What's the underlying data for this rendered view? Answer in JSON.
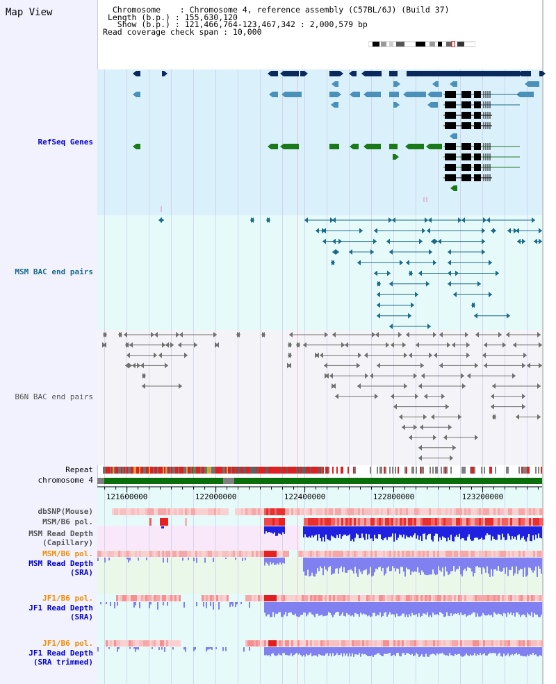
{
  "title": "Map View",
  "info": {
    "chromosome_key": "Chromosome",
    "chromosome_val": "Chromosome 4, reference assembly (C57BL/6J) (Build 37)",
    "length_key": "Length (b.p.)",
    "length_val": "155,630,120",
    "show_key": "Show (b.p.)",
    "show_val": "121,466,764-123,467,342 : 2,000,579 bp",
    "span_key": "Read coverage check span",
    "span_val": "10,000"
  },
  "axis": {
    "start": 121466764,
    "end": 123467342,
    "ticks": [
      {
        "value": 121600000,
        "label": "121600000"
      },
      {
        "value": 122000000,
        "label": "122000000"
      },
      {
        "value": 122400000,
        "label": "122400000"
      },
      {
        "value": 122800000,
        "label": "122800000"
      },
      {
        "value": 123200000,
        "label": "123200000"
      }
    ]
  },
  "tracks": {
    "refseq": "RefSeq Genes",
    "msm_bac": "MSM BAC end pairs",
    "b6n_bac": "B6N BAC end pairs",
    "repeat": "Repeat",
    "chromosome": "chromosome 4",
    "dbsnp": "dbSNP(Mouse)",
    "msm_pol1": "MSM/B6 pol.",
    "msm_depth_cap_1": "MSM Read Depth",
    "msm_depth_cap_2": "(Capillary)",
    "msm_pol2": "MSM/B6 pol.",
    "msm_depth_sra_1": "MSM Read Depth",
    "msm_depth_sra_2": "(SRA)",
    "jf1_pol1": "JF1/B6 pol.",
    "jf1_depth_sra_1": "JF1 Read Depth",
    "jf1_depth_sra_2": "(SRA)",
    "jf1_pol2": "JF1/B6 pol.",
    "jf1_depth_trim_1": "JF1 Read Depth",
    "jf1_depth_trim_2": "(SRA trimmed)"
  },
  "colors": {
    "refseq_bg": "#daf0fa",
    "msm_bg": "#e6fafa",
    "b6n_bg": "#f4f4f8",
    "cover_bg": "#e6fafa",
    "gene_dark": "#0a2a5e",
    "gene_light": "#4a90b8",
    "gene_green": "#1a7a1a",
    "msm_pair": "#1a6a8a",
    "b6n_pair": "#707070",
    "depth_blue": "#2020e0",
    "depth_lilac": "#8080f0",
    "pol_red": "#e02020",
    "pol_pink": "#f8c8c8",
    "chrom_green": "#0a6e0a"
  }
}
